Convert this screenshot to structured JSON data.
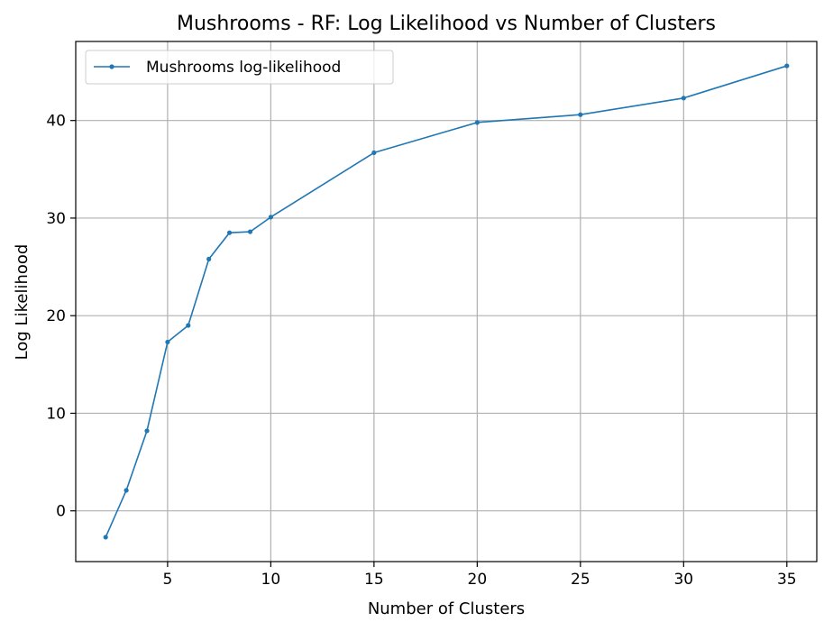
{
  "chart_data": {
    "type": "line",
    "title": "Mushrooms - RF: Log Likelihood vs Number of Clusters",
    "xlabel": "Number of Clusters",
    "ylabel": "Log Likelihood",
    "xlim": [
      0.55,
      36.45
    ],
    "ylim": [
      -5.2,
      48.1
    ],
    "xticks": [
      5,
      10,
      15,
      20,
      25,
      30,
      35
    ],
    "yticks": [
      0,
      10,
      20,
      30,
      40
    ],
    "grid": true,
    "legend_position": "top-left",
    "series": [
      {
        "name": "Mushrooms log-likelihood",
        "color": "#1f77b4",
        "x": [
          2,
          3,
          4,
          5,
          6,
          7,
          8,
          9,
          10,
          15,
          20,
          25,
          30,
          35
        ],
        "y": [
          -2.7,
          2.1,
          8.2,
          17.3,
          19.0,
          25.8,
          28.5,
          28.6,
          30.1,
          36.7,
          39.8,
          40.6,
          42.3,
          45.6
        ]
      }
    ]
  }
}
